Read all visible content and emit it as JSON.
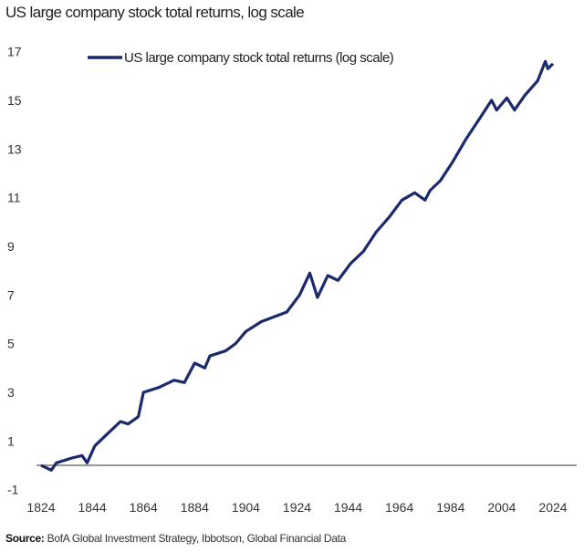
{
  "chart_data": {
    "type": "line",
    "title": "US large company stock total returns, log scale",
    "xlabel": "",
    "ylabel": "",
    "xlim": [
      1824,
      2030
    ],
    "ylim": [
      -1,
      17
    ],
    "x_ticks": [
      1824,
      1844,
      1864,
      1884,
      1904,
      1924,
      1944,
      1964,
      1984,
      2004,
      2024
    ],
    "y_ticks": [
      -1,
      1,
      3,
      5,
      7,
      9,
      11,
      13,
      15,
      17
    ],
    "grid": false,
    "zero_line": true,
    "legend_position": "top-left",
    "series": [
      {
        "name": "US large company stock total returns (log scale)",
        "color": "#1a2a6c",
        "x": [
          1824,
          1828,
          1830,
          1836,
          1840,
          1842,
          1845,
          1850,
          1855,
          1858,
          1862,
          1864,
          1870,
          1876,
          1880,
          1884,
          1888,
          1890,
          1896,
          1900,
          1904,
          1910,
          1915,
          1920,
          1925,
          1929,
          1932,
          1936,
          1940,
          1945,
          1950,
          1955,
          1960,
          1965,
          1970,
          1974,
          1976,
          1980,
          1985,
          1990,
          1995,
          2000,
          2002,
          2006,
          2009,
          2013,
          2018,
          2021,
          2022,
          2024
        ],
        "y": [
          0,
          -0.2,
          0.1,
          0.3,
          0.4,
          0.1,
          0.8,
          1.3,
          1.8,
          1.7,
          2.0,
          3.0,
          3.2,
          3.5,
          3.4,
          4.2,
          4.0,
          4.5,
          4.7,
          5.0,
          5.5,
          5.9,
          6.1,
          6.3,
          7.0,
          7.9,
          6.9,
          7.8,
          7.6,
          8.3,
          8.8,
          9.6,
          10.2,
          10.9,
          11.2,
          10.9,
          11.3,
          11.7,
          12.5,
          13.4,
          14.2,
          15.0,
          14.6,
          15.1,
          14.6,
          15.2,
          15.8,
          16.6,
          16.3,
          16.5
        ]
      }
    ]
  },
  "source_label": "Source:",
  "source_text": "BofA Global Investment Strategy, Ibbotson,  Global Financial Data"
}
